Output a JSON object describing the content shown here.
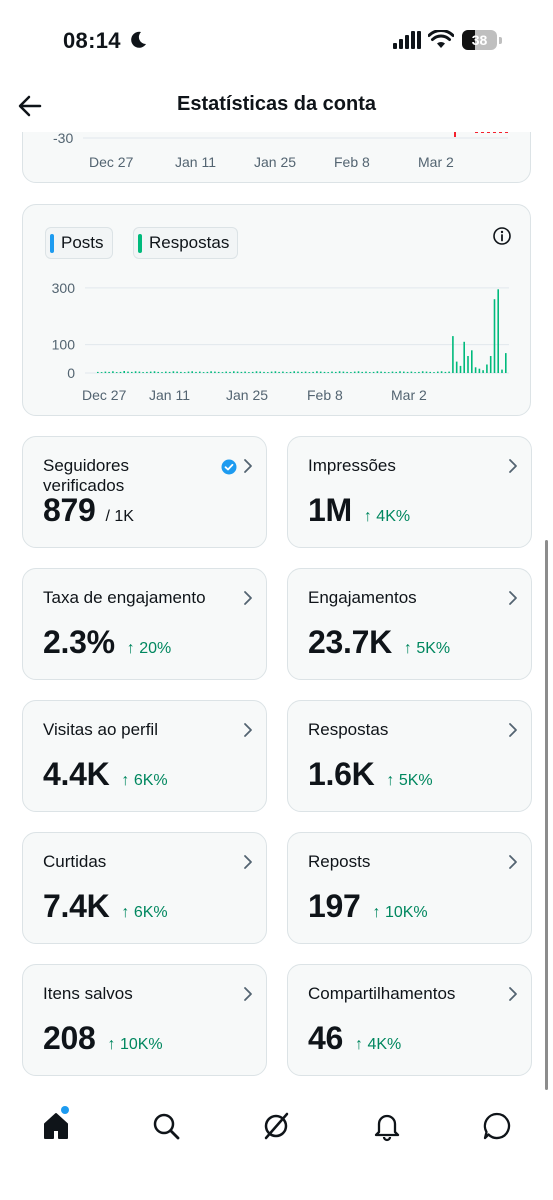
{
  "status_bar": {
    "time": "08:14",
    "battery": "38"
  },
  "header": {
    "title": "Estatísticas da conta"
  },
  "top_chart": {
    "y_tick": "-30",
    "x_ticks": [
      "Dec 27",
      "Jan 11",
      "Jan 25",
      "Feb 8",
      "Mar 2"
    ]
  },
  "chart_data": {
    "type": "bar",
    "legend": [
      {
        "name": "Posts",
        "color": "#1d9bf0"
      },
      {
        "name": "Respostas",
        "color": "#00ba7c"
      }
    ],
    "x_ticks": [
      "Dec 27",
      "Jan 11",
      "Jan 25",
      "Feb 8",
      "Mar 2"
    ],
    "y_ticks": [
      0,
      100,
      300
    ],
    "ylim": [
      0,
      310
    ],
    "grid": true,
    "series": [
      {
        "name": "Respostas",
        "color": "#00ba7c",
        "values": [
          4,
          3,
          5,
          4,
          6,
          3,
          4,
          7,
          5,
          4,
          6,
          5,
          3,
          4,
          5,
          6,
          4,
          3,
          5,
          4,
          6,
          5,
          4,
          3,
          5,
          6,
          4,
          5,
          3,
          4,
          6,
          5,
          4,
          3,
          5,
          4,
          6,
          5,
          4,
          5,
          3,
          4,
          6,
          5,
          4,
          3,
          5,
          6,
          4,
          5,
          3,
          4,
          6,
          5,
          4,
          5,
          3,
          4,
          6,
          5,
          4,
          3,
          5,
          4,
          6,
          5,
          4,
          3,
          5,
          6,
          4,
          5,
          3,
          4,
          6,
          5,
          4,
          3,
          5,
          4,
          6,
          5,
          4,
          5,
          3,
          4,
          6,
          5,
          4,
          3,
          5,
          6,
          4,
          5,
          130,
          40,
          25,
          110,
          60,
          80,
          20,
          15,
          10,
          30,
          60,
          260,
          295,
          12,
          70
        ]
      }
    ]
  },
  "tiles": [
    {
      "title": "Seguidores verificados",
      "value": "879",
      "sub": "/ 1K",
      "verified": true
    },
    {
      "title": "Impressões",
      "value": "1M",
      "change": "↑ 4K%"
    },
    {
      "title": "Taxa de engajamento",
      "value": "2.3%",
      "change": "↑ 20%"
    },
    {
      "title": "Engajamentos",
      "value": "23.7K",
      "change": "↑ 5K%"
    },
    {
      "title": "Visitas ao perfil",
      "value": "4.4K",
      "change": "↑ 6K%"
    },
    {
      "title": "Respostas",
      "value": "1.6K",
      "change": "↑ 5K%"
    },
    {
      "title": "Curtidas",
      "value": "7.4K",
      "change": "↑ 6K%"
    },
    {
      "title": "Reposts",
      "value": "197",
      "change": "↑ 10K%"
    },
    {
      "title": "Itens salvos",
      "value": "208",
      "change": "↑ 10K%"
    },
    {
      "title": "Compartilhamentos",
      "value": "46",
      "change": "↑ 4K%"
    }
  ],
  "nav": {
    "items": [
      "home-icon",
      "search-icon",
      "grok-icon",
      "notifications-icon",
      "messages-icon"
    ],
    "home_has_badge": true
  }
}
